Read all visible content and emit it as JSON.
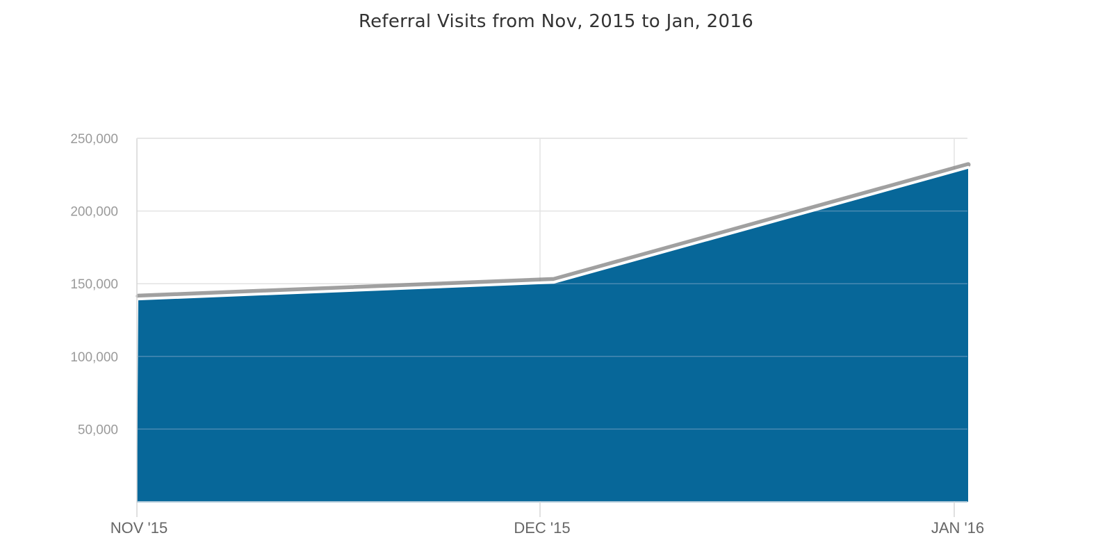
{
  "chart_data": {
    "type": "area",
    "title": "Referral Visits from Nov, 2015 to Jan, 2016",
    "xlabel": "",
    "ylabel": "",
    "categories": [
      "NOV '15",
      "DEC '15",
      "JAN '16"
    ],
    "values": [
      139500,
      151000,
      230000
    ],
    "ylim": [
      0,
      250000
    ],
    "yticks": [
      50000,
      100000,
      150000,
      200000,
      250000
    ],
    "ytick_labels": [
      "50,000",
      "100,000",
      "150,000",
      "200,000",
      "250,000"
    ],
    "grid": true,
    "legend": "none",
    "colors": {
      "area": "#076799",
      "line": "#ffffff",
      "shadow": "#808080",
      "grid": "#e3e3e3",
      "grid_over_area": "#4a8ab2"
    }
  }
}
